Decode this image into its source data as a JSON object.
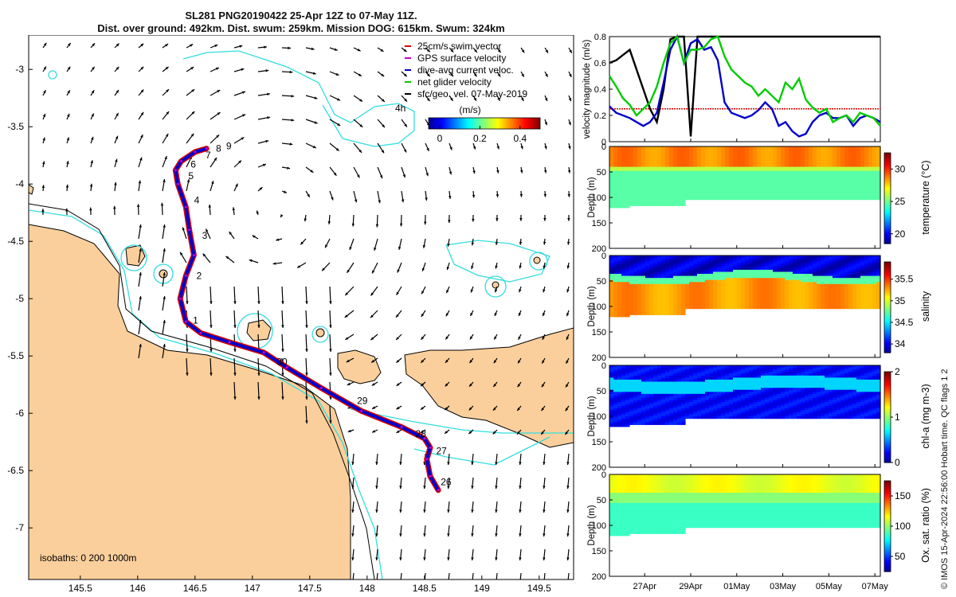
{
  "title": {
    "line1": "SL281 PNG20190422 25-Apr 12Z to 07-May 11Z.",
    "line2": "Dist. over ground: 492km. Dist. swum: 259km. Mission DOG: 615km. Swum: 324km"
  },
  "map": {
    "x_ticks": [
      "145.5",
      "146",
      "146.5",
      "147",
      "147.5",
      "148",
      "148.5",
      "149",
      "149.5"
    ],
    "x_values": [
      145.5,
      146,
      146.5,
      147,
      147.5,
      148,
      148.5,
      149,
      149.5
    ],
    "y_ticks": [
      "-3",
      "-3.5",
      "-4",
      "-4.5",
      "-5",
      "-5.5",
      "-6",
      "-6.5",
      "-7"
    ],
    "y_values": [
      -3,
      -3.5,
      -4,
      -4.5,
      -5,
      -5.5,
      -6,
      -6.5,
      -7
    ],
    "xlim": [
      145.05,
      149.8
    ],
    "ylim": [
      -7.45,
      -2.7
    ],
    "legend": [
      "25cm/s swim vector",
      "GPS surface velocity",
      "dive-avg current veloc.",
      "net glider velocity",
      "sfc/geo. vel. 07-May-2019"
    ],
    "legend_colors": [
      "#dd0000",
      "#cc00cc",
      "#0000cc",
      "#00cc00",
      "#000000"
    ],
    "colorbar_title": "(m/s)",
    "colorbar_ticks": [
      "0",
      "0.2",
      "0.4"
    ],
    "colorbar_values": [
      0,
      0.2,
      0.4
    ],
    "isobaths_label": "isobaths: 0   200  1000m",
    "annotation_4h": "4h",
    "track": [
      [
        146.6,
        -3.69
      ],
      [
        146.5,
        -3.72
      ],
      [
        146.38,
        -3.8
      ],
      [
        146.33,
        -3.88
      ],
      [
        146.35,
        -4.0
      ],
      [
        146.42,
        -4.2
      ],
      [
        146.45,
        -4.4
      ],
      [
        146.49,
        -4.62
      ],
      [
        146.42,
        -4.8
      ],
      [
        146.37,
        -5.0
      ],
      [
        146.42,
        -5.2
      ],
      [
        146.55,
        -5.3
      ],
      [
        146.8,
        -5.38
      ],
      [
        147.1,
        -5.47
      ],
      [
        147.3,
        -5.6
      ],
      [
        147.6,
        -5.78
      ],
      [
        147.95,
        -5.98
      ],
      [
        148.3,
        -6.12
      ],
      [
        148.5,
        -6.22
      ],
      [
        148.55,
        -6.3
      ],
      [
        148.52,
        -6.4
      ],
      [
        148.55,
        -6.55
      ],
      [
        148.62,
        -6.67
      ]
    ],
    "day_labels": [
      {
        "t": "9",
        "lon": 146.73,
        "lat": -3.67
      },
      {
        "t": "8",
        "lon": 146.64,
        "lat": -3.69
      },
      {
        "t": "7",
        "lon": 146.55,
        "lat": -3.75
      },
      {
        "t": "6",
        "lon": 146.42,
        "lat": -3.83
      },
      {
        "t": "5",
        "lon": 146.4,
        "lat": -3.93
      },
      {
        "t": "4",
        "lon": 146.45,
        "lat": -4.14
      },
      {
        "t": "3",
        "lon": 146.52,
        "lat": -4.45
      },
      {
        "t": "2",
        "lon": 146.47,
        "lat": -4.8
      },
      {
        "t": "1",
        "lon": 146.44,
        "lat": -5.19
      },
      {
        "t": "30",
        "lon": 147.17,
        "lat": -5.55
      },
      {
        "t": "29",
        "lon": 147.87,
        "lat": -5.89
      },
      {
        "t": "28",
        "lon": 148.38,
        "lat": -6.18
      },
      {
        "t": "27",
        "lon": 148.56,
        "lat": -6.33
      },
      {
        "t": "26",
        "lon": 148.6,
        "lat": -6.6
      }
    ],
    "land_color": "#fbcf9c",
    "isobath_200_color": "#33dddd"
  },
  "velocity": {
    "ylabel": "velocity magnitude (m/s)",
    "ylim": [
      0,
      0.8
    ],
    "y_ticks": [
      "0",
      "0.2",
      "0.4",
      "0.6",
      "0.8"
    ],
    "y_values": [
      0,
      0.2,
      0.4,
      0.6,
      0.8
    ],
    "red_level": 0.25,
    "series": [
      {
        "name": "black",
        "color": "#000000",
        "values": [
          0.6,
          0.62,
          0.66,
          0.7,
          0.55,
          0.4,
          0.25,
          0.15,
          0.4,
          0.78,
          0.8,
          0.8,
          0.04,
          0.8,
          0.8,
          0.8,
          0.8,
          0.8,
          0.8,
          0.8,
          0.8,
          0.8,
          0.8,
          0.8,
          0.8,
          0.8,
          0.8,
          0.8,
          0.8,
          0.8,
          0.8,
          0.8,
          0.8,
          0.8,
          0.8,
          0.8,
          0.8,
          0.8,
          0.8,
          0.8,
          0.8
        ]
      },
      {
        "name": "blue",
        "color": "#0000cc",
        "values": [
          0.27,
          0.22,
          0.2,
          0.18,
          0.15,
          0.12,
          0.15,
          0.22,
          0.45,
          0.7,
          0.8,
          0.6,
          0.75,
          0.78,
          0.7,
          0.72,
          0.62,
          0.3,
          0.22,
          0.2,
          0.18,
          0.2,
          0.24,
          0.3,
          0.25,
          0.12,
          0.15,
          0.08,
          0.04,
          0.06,
          0.15,
          0.2,
          0.22,
          0.18,
          0.18,
          0.2,
          0.12,
          0.18,
          0.2,
          0.18,
          0.15
        ]
      },
      {
        "name": "green",
        "color": "#00cc00",
        "values": [
          0.5,
          0.42,
          0.33,
          0.28,
          0.2,
          0.25,
          0.3,
          0.42,
          0.6,
          0.75,
          0.8,
          0.6,
          0.7,
          0.7,
          0.72,
          0.78,
          0.8,
          0.65,
          0.55,
          0.5,
          0.45,
          0.42,
          0.35,
          0.4,
          0.35,
          0.3,
          0.45,
          0.4,
          0.48,
          0.32,
          0.26,
          0.22,
          0.25,
          0.15,
          0.18,
          0.2,
          0.15,
          0.22,
          0.2,
          0.18,
          0.12
        ]
      }
    ]
  },
  "profiles": [
    {
      "name": "temperature",
      "cb_label": "temperature (°C)",
      "cb_ticks": [
        "20",
        "25",
        "30"
      ],
      "cb_values": [
        20,
        25,
        30
      ],
      "cb_min": 18.5,
      "cb_max": 32.5
    },
    {
      "name": "salinity",
      "cb_label": "salinity",
      "cb_ticks": [
        "34",
        "34.5",
        "35",
        "35.5"
      ],
      "cb_values": [
        34,
        34.5,
        35,
        35.5
      ],
      "cb_min": 33.8,
      "cb_max": 35.9
    },
    {
      "name": "chl",
      "cb_label": "chl-a (mg m-3)",
      "cb_ticks": [
        "0",
        "1",
        "2"
      ],
      "cb_values": [
        0,
        1,
        2
      ],
      "cb_min": 0,
      "cb_max": 2
    },
    {
      "name": "oxygen",
      "cb_label": "Ox. sat. ratio (%)",
      "cb_ticks": [
        "50",
        "100",
        "150"
      ],
      "cb_values": [
        50,
        100,
        150
      ],
      "cb_min": 25,
      "cb_max": 175
    }
  ],
  "depth_label": "Depth (m)",
  "depth_ticks": [
    "0",
    "50",
    "100",
    "150",
    "200"
  ],
  "depth_values": [
    0,
    50,
    100,
    150,
    200
  ],
  "time_ticks": [
    "27Apr",
    "29Apr",
    "01May",
    "03May",
    "05May",
    "07May"
  ],
  "stamp": "© IMOS 15-Apr-2024 22:56:00 Hobart time. QC flags 1  2"
}
